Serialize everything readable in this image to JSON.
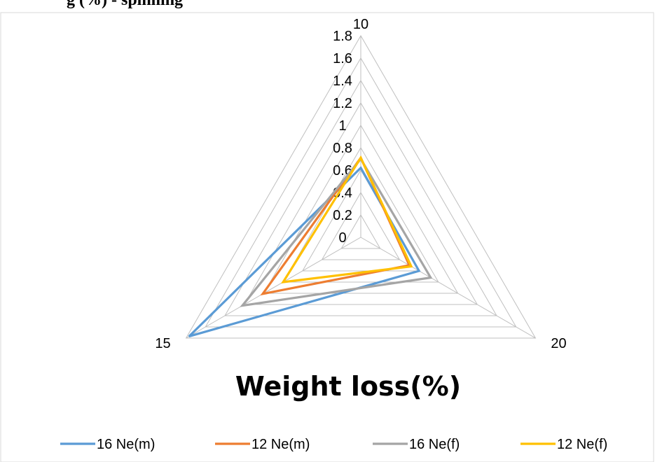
{
  "caption_fragment": "g (%) - spinning",
  "chart_data": {
    "type": "radar",
    "title": "Weight loss(%)",
    "categories": [
      "10",
      "20",
      "15"
    ],
    "radial_ticks": [
      "0",
      "0.2",
      "0.4",
      "0.6",
      "0.8",
      "1",
      "1.2",
      "1.4",
      "1.6",
      "1.8"
    ],
    "rlim": [
      0,
      1.8
    ],
    "grid": true,
    "legend_position": "bottom",
    "series": [
      {
        "name": "16 Ne(m)",
        "color": "#5B9BD5",
        "values": [
          0.62,
          0.6,
          1.77
        ]
      },
      {
        "name": "12 Ne(m)",
        "color": "#ED7D31",
        "values": [
          0.71,
          0.5,
          1.01
        ]
      },
      {
        "name": "16 Ne(f)",
        "color": "#A5A5A5",
        "values": [
          0.7,
          0.72,
          1.22
        ]
      },
      {
        "name": "12 Ne(f)",
        "color": "#FFC000",
        "values": [
          0.71,
          0.52,
          0.8
        ]
      }
    ]
  }
}
